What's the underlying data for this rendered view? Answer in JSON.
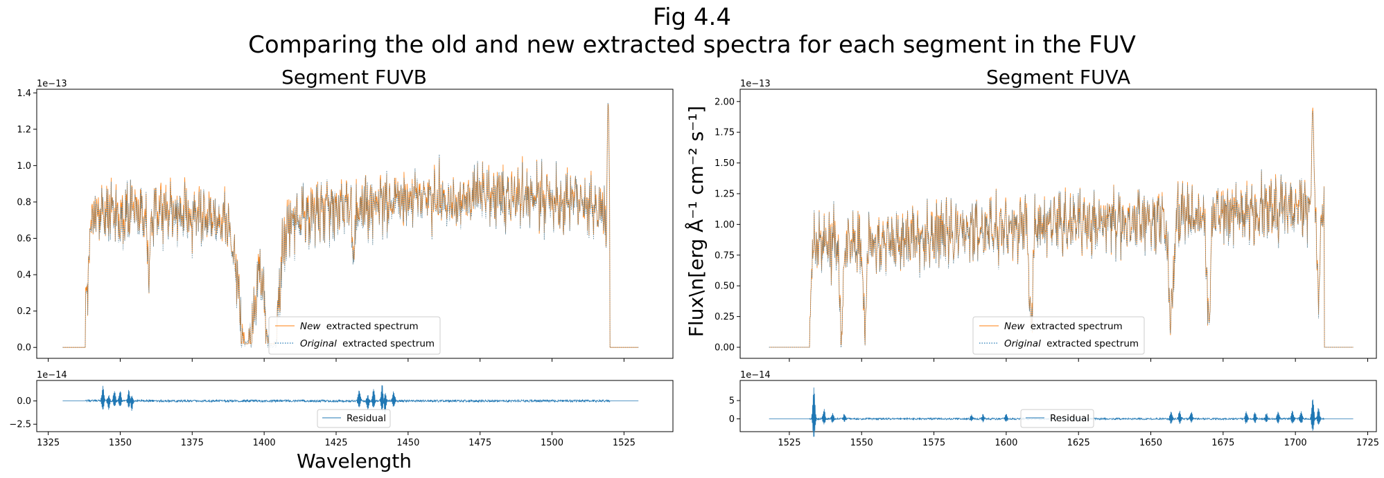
{
  "figure": {
    "title_line1": "Fig 4.4",
    "title_line2": "Comparing the old and new extracted spectra for each segment in the FUV",
    "xlabel": "Wavelength",
    "ylabel_text": "Flux\\n[erg Å⁻¹ cm⁻² s⁻¹]"
  },
  "colors": {
    "new": "#ff7f0e",
    "original": "#1f77b4",
    "blend": "#577f94",
    "residual": "#1f77b4"
  },
  "legend": {
    "new_em": "New",
    "new_rest": "extracted spectrum",
    "orig_em": "Original",
    "orig_rest": "extracted spectrum",
    "residual": "Residual"
  },
  "chart_data": [
    {
      "id": "fuvb",
      "type": "line",
      "title": "Segment FUVB",
      "xlim": [
        1321,
        1542
      ],
      "main": {
        "ylim": [
          -0.06,
          1.42
        ],
        "scale_label": "1e−13",
        "yticks": [
          0.0,
          0.2,
          0.4,
          0.6,
          0.8,
          1.0,
          1.2,
          1.4
        ],
        "ytick_labels": [
          "0.0",
          "0.2",
          "0.4",
          "0.6",
          "0.8",
          "1.0",
          "1.2",
          "1.4"
        ],
        "x_range": [
          1330,
          1530
        ],
        "data_range": [
          1338,
          1520
        ],
        "baseline": 0.65,
        "amplitude": 0.16,
        "trend": [
          [
            1338,
            0.72
          ],
          [
            1360,
            0.74
          ],
          [
            1385,
            0.7
          ],
          [
            1400,
            0.66
          ],
          [
            1420,
            0.76
          ],
          [
            1450,
            0.82
          ],
          [
            1490,
            0.84
          ],
          [
            1520,
            0.78
          ]
        ],
        "dips": [
          [
            1338.5,
            0.5,
            0.5
          ],
          [
            1360,
            0.3,
            0.5
          ],
          [
            1394,
            0.75,
            2.5
          ],
          [
            1402.7,
            0.85,
            2.0
          ],
          [
            1431,
            0.25,
            0.5
          ],
          [
            1519.5,
            0.55,
            0.6
          ]
        ],
        "peaks": [
          [
            1519.5,
            1.35,
            0.5
          ]
        ]
      },
      "residual": {
        "ylim": [
          -3.3,
          2.2
        ],
        "scale_label": "1e−14",
        "yticks": [
          -2.5,
          0.0
        ],
        "ytick_labels": [
          "−2.5",
          "0.0"
        ],
        "x_range": [
          1330,
          1530
        ],
        "data_range": [
          1338,
          1520
        ],
        "spikes": [
          [
            1344,
            1.5
          ],
          [
            1346,
            -0.9
          ],
          [
            1348,
            1.1
          ],
          [
            1350,
            1.1
          ],
          [
            1353,
            1.2
          ],
          [
            1354,
            -1.0
          ],
          [
            1433,
            1.2
          ],
          [
            1436,
            -0.9
          ],
          [
            1438,
            1.3
          ],
          [
            1441,
            1.7
          ],
          [
            1442,
            -1.3
          ],
          [
            1445,
            1.0
          ]
        ],
        "noise": 0.12
      },
      "xticks": [
        1325,
        1350,
        1375,
        1400,
        1425,
        1450,
        1475,
        1500,
        1525
      ],
      "xtick_labels": [
        "1325",
        "1350",
        "1375",
        "1400",
        "1425",
        "1450",
        "1475",
        "1500",
        "1525"
      ]
    },
    {
      "id": "fuva",
      "type": "line",
      "title": "Segment FUVA",
      "xlim": [
        1508,
        1728
      ],
      "main": {
        "ylim": [
          -0.09,
          2.1
        ],
        "scale_label": "1e−13",
        "yticks": [
          0.0,
          0.25,
          0.5,
          0.75,
          1.0,
          1.25,
          1.5,
          1.75,
          2.0
        ],
        "ytick_labels": [
          "0.00",
          "0.25",
          "0.50",
          "0.75",
          "1.00",
          "1.25",
          "1.50",
          "1.75",
          "2.00"
        ],
        "x_range": [
          1518,
          1720
        ],
        "data_range": [
          1532,
          1710
        ],
        "baseline": 0.95,
        "amplitude": 0.24,
        "trend": [
          [
            1532,
            0.82
          ],
          [
            1560,
            0.88
          ],
          [
            1600,
            0.98
          ],
          [
            1640,
            1.03
          ],
          [
            1680,
            1.08
          ],
          [
            1700,
            1.15
          ],
          [
            1710,
            1.1
          ]
        ],
        "dips": [
          [
            1532,
            0.6,
            0.5
          ],
          [
            1543,
            0.75,
            0.5
          ],
          [
            1551,
            0.6,
            0.6
          ],
          [
            1608.5,
            0.85,
            0.6
          ],
          [
            1657,
            0.8,
            0.8
          ],
          [
            1670,
            0.9,
            0.6
          ],
          [
            1708,
            0.6,
            0.6
          ]
        ],
        "peaks": [
          [
            1706,
            1.95,
            0.6
          ]
        ]
      },
      "residual": {
        "ylim": [
          -3.5,
          10.5
        ],
        "scale_label": "1e−14",
        "yticks": [
          0,
          5
        ],
        "ytick_labels": [
          "0",
          "5"
        ],
        "x_range": [
          1518,
          1720
        ],
        "data_range": [
          1532,
          1710
        ],
        "spikes": [
          [
            1533.5,
            8.5
          ],
          [
            1537,
            2.5
          ],
          [
            1540,
            1.5
          ],
          [
            1544,
            1.2
          ],
          [
            1588,
            1.0
          ],
          [
            1592,
            1.2
          ],
          [
            1600,
            1.3
          ],
          [
            1657,
            2.0
          ],
          [
            1660,
            2.2
          ],
          [
            1664,
            1.8
          ],
          [
            1683,
            2.0
          ],
          [
            1686,
            1.8
          ],
          [
            1690,
            1.5
          ],
          [
            1694,
            1.8
          ],
          [
            1699,
            2.2
          ],
          [
            1702,
            2.0
          ],
          [
            1706,
            5.5
          ],
          [
            1708,
            3.0
          ]
        ],
        "noise": 0.25
      },
      "xticks": [
        1525,
        1550,
        1575,
        1600,
        1625,
        1650,
        1675,
        1700,
        1725
      ],
      "xtick_labels": [
        "1525",
        "1550",
        "1575",
        "1600",
        "1625",
        "1650",
        "1675",
        "1700",
        "1725"
      ]
    }
  ]
}
